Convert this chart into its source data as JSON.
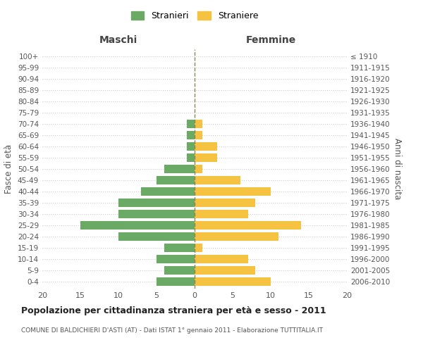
{
  "age_groups": [
    "0-4",
    "5-9",
    "10-14",
    "15-19",
    "20-24",
    "25-29",
    "30-34",
    "35-39",
    "40-44",
    "45-49",
    "50-54",
    "55-59",
    "60-64",
    "65-69",
    "70-74",
    "75-79",
    "80-84",
    "85-89",
    "90-94",
    "95-99",
    "100+"
  ],
  "birth_years": [
    "2006-2010",
    "2001-2005",
    "1996-2000",
    "1991-1995",
    "1986-1990",
    "1981-1985",
    "1976-1980",
    "1971-1975",
    "1966-1970",
    "1961-1965",
    "1956-1960",
    "1951-1955",
    "1946-1950",
    "1941-1945",
    "1936-1940",
    "1931-1935",
    "1926-1930",
    "1921-1925",
    "1916-1920",
    "1911-1915",
    "≤ 1910"
  ],
  "maschi": [
    5,
    4,
    5,
    4,
    10,
    15,
    10,
    10,
    7,
    5,
    4,
    1,
    1,
    1,
    1,
    0,
    0,
    0,
    0,
    0,
    0
  ],
  "femmine": [
    10,
    8,
    7,
    1,
    11,
    14,
    7,
    8,
    10,
    6,
    1,
    3,
    3,
    1,
    1,
    0,
    0,
    0,
    0,
    0,
    0
  ],
  "color_maschi": "#6aaa64",
  "color_femmine": "#f5c242",
  "title": "Popolazione per cittadinanza straniera per età e sesso - 2011",
  "subtitle": "COMUNE DI BALDICHIERI D'ASTI (AT) - Dati ISTAT 1° gennaio 2011 - Elaborazione TUTTITALIA.IT",
  "xlabel_left": "Maschi",
  "xlabel_right": "Femmine",
  "ylabel_left": "Fasce di età",
  "ylabel_right": "Anni di nascita",
  "xlim": 20,
  "legend_maschi": "Stranieri",
  "legend_femmine": "Straniere",
  "bg_color": "#ffffff",
  "grid_color": "#cccccc"
}
